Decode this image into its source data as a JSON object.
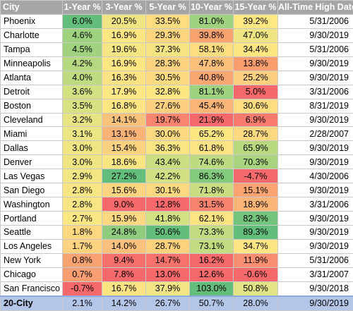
{
  "headers": [
    "City",
    "1-Year %",
    "3-Year %",
    "5-Year %",
    "10-Year %",
    "15-Year %",
    "All-Time High Date"
  ],
  "rows": [
    {
      "city": "Phoenix",
      "values": [
        "6.0%",
        "20.5%",
        "33.5%",
        "81.0%",
        "39.2%"
      ],
      "colors": [
        "#63be7b",
        "#eee483",
        "#fedd81",
        "#9ed27f",
        "#ffe884"
      ],
      "date": "5/31/2006"
    },
    {
      "city": "Charlotte",
      "values": [
        "4.6%",
        "16.9%",
        "29.3%",
        "39.8%",
        "47.0%"
      ],
      "colors": [
        "#9ed27f",
        "#fee683",
        "#fed680",
        "#f8a270",
        "#f0e583"
      ],
      "date": "9/30/2019"
    },
    {
      "city": "Tampa",
      "values": [
        "4.5%",
        "19.6%",
        "37.3%",
        "58.1%",
        "34.4%"
      ],
      "colors": [
        "#a1d27f",
        "#f5e683",
        "#f7e482",
        "#fedd81",
        "#fee683"
      ],
      "date": "5/31/2006"
    },
    {
      "city": "Minneapolis",
      "values": [
        "4.2%",
        "16.9%",
        "28.3%",
        "47.8%",
        "13.8%"
      ],
      "colors": [
        "#b5d880",
        "#fee683",
        "#fdd380",
        "#fcc07b",
        "#fa9e70"
      ],
      "date": "9/30/2019"
    },
    {
      "city": "Atlanta",
      "values": [
        "4.0%",
        "16.3%",
        "30.5%",
        "40.8%",
        "25.2%"
      ],
      "colors": [
        "#bfdb81",
        "#fde283",
        "#feda81",
        "#f9a672",
        "#fdd07f"
      ],
      "date": "9/30/2019"
    },
    {
      "city": "Detroit",
      "values": [
        "3.6%",
        "17.9%",
        "32.8%",
        "81.1%",
        "5.0%"
      ],
      "colors": [
        "#d3e182",
        "#fee784",
        "#fee683",
        "#9ed27f",
        "#f8696b"
      ],
      "date": "3/31/2006"
    },
    {
      "city": "Boston",
      "values": [
        "3.5%",
        "16.8%",
        "27.6%",
        "45.4%",
        "30.6%"
      ],
      "colors": [
        "#d8e282",
        "#fee483",
        "#fcd07f",
        "#fbb677",
        "#fedd81"
      ],
      "date": "8/31/2019"
    },
    {
      "city": "Cleveland",
      "values": [
        "3.2%",
        "14.1%",
        "19.7%",
        "21.9%",
        "6.9%"
      ],
      "colors": [
        "#e7e583",
        "#fbc27c",
        "#f98571",
        "#f8696b",
        "#f97b6e"
      ],
      "date": "9/30/2019"
    },
    {
      "city": "Miami",
      "values": [
        "3.1%",
        "13.1%",
        "30.0%",
        "65.2%",
        "28.7%"
      ],
      "colors": [
        "#ebe683",
        "#fab377",
        "#fdd981",
        "#fee783",
        "#fed980"
      ],
      "date": "2/28/2007"
    },
    {
      "city": "Dallas",
      "values": [
        "3.0%",
        "15.4%",
        "36.3%",
        "61.8%",
        "65.9%"
      ],
      "colors": [
        "#efe683",
        "#fcd27f",
        "#f9e683",
        "#fee382",
        "#b9d980"
      ],
      "date": "9/30/2019"
    },
    {
      "city": "Denver",
      "values": [
        "3.0%",
        "18.6%",
        "43.4%",
        "74.6%",
        "70.3%"
      ],
      "colors": [
        "#efe683",
        "#f9e683",
        "#cbdf82",
        "#bddb81",
        "#a8d47f"
      ],
      "date": "9/30/2019"
    },
    {
      "city": "Las Vegas",
      "values": [
        "2.9%",
        "27.2%",
        "42.2%",
        "86.3%",
        "-4.7%"
      ],
      "colors": [
        "#f2e683",
        "#63be7b",
        "#d1e082",
        "#84ca7d",
        "#f8696b"
      ],
      "date": "4/30/2006"
    },
    {
      "city": "San Diego",
      "values": [
        "2.8%",
        "15.6%",
        "30.1%",
        "71.8%",
        "15.1%"
      ],
      "colors": [
        "#f7e683",
        "#fdd580",
        "#fdd981",
        "#c9de81",
        "#fba472"
      ],
      "date": "9/30/2019"
    },
    {
      "city": "Washington",
      "values": [
        "2.8%",
        "9.0%",
        "12.8%",
        "31.5%",
        "18.9%"
      ],
      "colors": [
        "#f7e683",
        "#f8696b",
        "#f8696b",
        "#f8846f",
        "#fbb677"
      ],
      "date": "3/31/2006"
    },
    {
      "city": "Portland",
      "values": [
        "2.7%",
        "15.9%",
        "41.8%",
        "62.1%",
        "82.3%"
      ],
      "colors": [
        "#fae683",
        "#fdd881",
        "#d3e182",
        "#fee383",
        "#73c47c"
      ],
      "date": "9/30/2019"
    },
    {
      "city": "Seattle",
      "values": [
        "1.8%",
        "24.8%",
        "50.6%",
        "73.3%",
        "89.3%"
      ],
      "colors": [
        "#fed880",
        "#90cc7e",
        "#63be7b",
        "#c1dc81",
        "#63be7b"
      ],
      "date": "9/30/2019"
    },
    {
      "city": "Los Angeles",
      "values": [
        "1.7%",
        "14.0%",
        "28.7%",
        "73.1%",
        "34.7%"
      ],
      "colors": [
        "#fdd380",
        "#fbc07b",
        "#fcd27f",
        "#c3dc81",
        "#fee583"
      ],
      "date": "9/30/2019"
    },
    {
      "city": "New York",
      "values": [
        "0.8%",
        "9.4%",
        "14.7%",
        "16.2%",
        "11.9%"
      ],
      "colors": [
        "#f9a372",
        "#f8706c",
        "#f8726c",
        "#f8696b",
        "#f98e70"
      ],
      "date": "5/31/2006"
    },
    {
      "city": "Chicago",
      "values": [
        "0.7%",
        "7.8%",
        "13.0%",
        "12.6%",
        "-0.6%"
      ],
      "colors": [
        "#f99e71",
        "#f8696b",
        "#f8696b",
        "#f8696b",
        "#f8696b"
      ],
      "date": "3/31/2007"
    },
    {
      "city": "San Francisco",
      "values": [
        "-0.7%",
        "16.7%",
        "37.9%",
        "103.0%",
        "50.8%"
      ],
      "colors": [
        "#f8696b",
        "#fee383",
        "#f2e583",
        "#63be7b",
        "#e3e483"
      ],
      "date": "9/30/2018"
    }
  ],
  "total": {
    "city": "20-City",
    "values": [
      "2.1%",
      "14.2%",
      "26.7%",
      "50.7%",
      "28.0%"
    ],
    "date": "9/30/2019"
  }
}
